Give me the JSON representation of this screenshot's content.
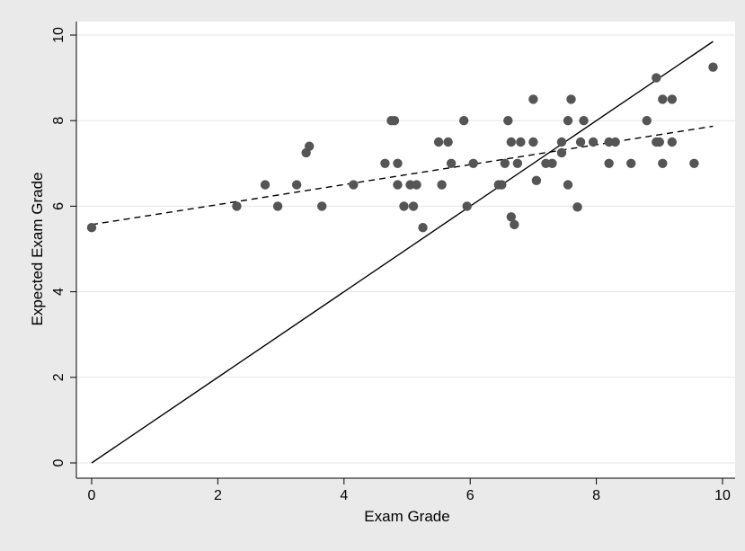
{
  "chart_data": {
    "type": "scatter",
    "title": "",
    "xlabel": "Exam Grade",
    "ylabel": "Expected Exam Grade",
    "xlim": [
      0,
      10
    ],
    "ylim": [
      0,
      10
    ],
    "x_ticks": [
      "0",
      "2",
      "4",
      "6",
      "8",
      "10"
    ],
    "y_ticks": [
      "0",
      "2",
      "4",
      "6",
      "8",
      "10"
    ],
    "grid": "horizontal",
    "legend": "none",
    "colors": {
      "background": "#eaeaea",
      "plot_background": "#ffffff",
      "marker": "#555555",
      "line": "#000000",
      "grid": "#e6e6e6"
    },
    "series": [
      {
        "type": "scatter",
        "points": [
          [
            0.0,
            5.5
          ],
          [
            2.3,
            6.0
          ],
          [
            2.75,
            6.5
          ],
          [
            2.95,
            6.0
          ],
          [
            3.25,
            6.5
          ],
          [
            3.4,
            7.25
          ],
          [
            3.45,
            7.4
          ],
          [
            3.65,
            6.0
          ],
          [
            4.15,
            6.5
          ],
          [
            4.65,
            7.0
          ],
          [
            4.75,
            8.0
          ],
          [
            4.8,
            8.0
          ],
          [
            4.85,
            7.0
          ],
          [
            4.85,
            6.5
          ],
          [
            4.95,
            6.0
          ],
          [
            5.05,
            6.5
          ],
          [
            5.1,
            6.0
          ],
          [
            5.15,
            6.5
          ],
          [
            5.25,
            5.5
          ],
          [
            5.5,
            7.5
          ],
          [
            5.55,
            6.5
          ],
          [
            5.65,
            7.5
          ],
          [
            5.7,
            7.0
          ],
          [
            5.9,
            8.0
          ],
          [
            5.95,
            6.0
          ],
          [
            6.05,
            7.0
          ],
          [
            6.45,
            6.5
          ],
          [
            6.5,
            6.5
          ],
          [
            6.55,
            7.0
          ],
          [
            6.6,
            8.0
          ],
          [
            6.65,
            7.5
          ],
          [
            6.65,
            5.75
          ],
          [
            6.7,
            5.57
          ],
          [
            6.75,
            7.0
          ],
          [
            6.8,
            7.5
          ],
          [
            7.0,
            8.5
          ],
          [
            7.0,
            7.5
          ],
          [
            7.05,
            6.6
          ],
          [
            7.2,
            7.0
          ],
          [
            7.3,
            7.0
          ],
          [
            7.45,
            7.5
          ],
          [
            7.45,
            7.25
          ],
          [
            7.55,
            8.0
          ],
          [
            7.55,
            6.5
          ],
          [
            7.6,
            8.5
          ],
          [
            7.7,
            5.98
          ],
          [
            7.75,
            7.5
          ],
          [
            7.8,
            8.0
          ],
          [
            7.95,
            7.5
          ],
          [
            8.2,
            7.5
          ],
          [
            8.2,
            7.0
          ],
          [
            8.3,
            7.5
          ],
          [
            8.55,
            7.0
          ],
          [
            8.8,
            8.0
          ],
          [
            8.95,
            9.0
          ],
          [
            8.95,
            7.5
          ],
          [
            9.0,
            7.5
          ],
          [
            9.05,
            8.5
          ],
          [
            9.05,
            7.0
          ],
          [
            9.2,
            8.5
          ],
          [
            9.2,
            7.5
          ],
          [
            9.55,
            7.0
          ],
          [
            9.85,
            9.25
          ]
        ]
      },
      {
        "type": "line",
        "style": "solid",
        "x": [
          0,
          9.85
        ],
        "y": [
          0,
          9.85
        ]
      },
      {
        "type": "line",
        "style": "dashed",
        "x": [
          0,
          9.85
        ],
        "y": [
          5.57,
          7.87
        ]
      }
    ]
  }
}
